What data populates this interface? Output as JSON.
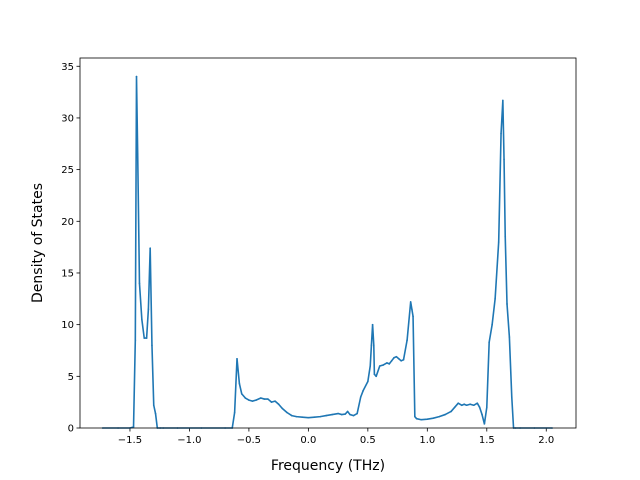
{
  "chart_data": {
    "type": "line",
    "title": "",
    "xlabel": "Frequency (THz)",
    "ylabel": "Density of States",
    "xlim": [
      -1.92,
      2.25
    ],
    "ylim": [
      0,
      35.8
    ],
    "grid": false,
    "legend": "none",
    "x_ticks": [
      {
        "value": -1.5,
        "label": "−1.5"
      },
      {
        "value": -1.0,
        "label": "−1.0"
      },
      {
        "value": -0.5,
        "label": "−0.5"
      },
      {
        "value": 0.0,
        "label": "0.0"
      },
      {
        "value": 0.5,
        "label": "0.5"
      },
      {
        "value": 1.0,
        "label": "1.0"
      },
      {
        "value": 1.5,
        "label": "1.5"
      },
      {
        "value": 2.0,
        "label": "2.0"
      }
    ],
    "y_ticks": [
      {
        "value": 0,
        "label": "0"
      },
      {
        "value": 5,
        "label": "5"
      },
      {
        "value": 10,
        "label": "10"
      },
      {
        "value": 15,
        "label": "15"
      },
      {
        "value": 20,
        "label": "20"
      },
      {
        "value": 25,
        "label": "25"
      },
      {
        "value": 30,
        "label": "30"
      },
      {
        "value": 35,
        "label": "35"
      }
    ],
    "series": [
      {
        "color": "#1f77b4",
        "x": [
          -1.73,
          -1.6,
          -1.5,
          -1.47,
          -1.455,
          -1.445,
          -1.435,
          -1.42,
          -1.4,
          -1.38,
          -1.36,
          -1.345,
          -1.33,
          -1.315,
          -1.3,
          -1.285,
          -1.27,
          -1.245,
          -1.22,
          -1.1,
          -0.9,
          -0.7,
          -0.64,
          -0.62,
          -0.6,
          -0.58,
          -0.56,
          -0.53,
          -0.5,
          -0.47,
          -0.44,
          -0.4,
          -0.37,
          -0.34,
          -0.31,
          -0.28,
          -0.25,
          -0.22,
          -0.18,
          -0.14,
          -0.1,
          -0.05,
          0.0,
          0.05,
          0.1,
          0.15,
          0.2,
          0.25,
          0.28,
          0.31,
          0.33,
          0.35,
          0.38,
          0.41,
          0.44,
          0.46,
          0.5,
          0.52,
          0.53,
          0.54,
          0.55,
          0.555,
          0.57,
          0.6,
          0.63,
          0.66,
          0.68,
          0.7,
          0.72,
          0.74,
          0.76,
          0.78,
          0.8,
          0.83,
          0.86,
          0.87,
          0.88,
          0.895,
          0.91,
          0.95,
          1.0,
          1.05,
          1.1,
          1.15,
          1.2,
          1.23,
          1.26,
          1.29,
          1.31,
          1.33,
          1.36,
          1.39,
          1.42,
          1.44,
          1.46,
          1.48,
          1.5,
          1.52,
          1.545,
          1.57,
          1.6,
          1.62,
          1.635,
          1.645,
          1.655,
          1.67,
          1.69,
          1.71,
          1.725,
          1.74,
          1.78,
          1.9,
          2.05
        ],
        "y": [
          0,
          0,
          0,
          0.1,
          8.5,
          34.0,
          26.5,
          14.0,
          10.5,
          8.7,
          8.7,
          11.5,
          17.4,
          8.0,
          2.2,
          1.4,
          0.0,
          0.0,
          0.0,
          0.0,
          0.0,
          0.0,
          0.0,
          1.5,
          6.7,
          4.3,
          3.3,
          2.9,
          2.7,
          2.6,
          2.7,
          2.9,
          2.8,
          2.8,
          2.5,
          2.6,
          2.3,
          1.9,
          1.5,
          1.2,
          1.1,
          1.05,
          1.0,
          1.05,
          1.1,
          1.2,
          1.3,
          1.4,
          1.3,
          1.35,
          1.6,
          1.3,
          1.2,
          1.4,
          3.0,
          3.6,
          4.5,
          6.0,
          8.0,
          10.0,
          8.0,
          5.2,
          5.0,
          6.0,
          6.1,
          6.3,
          6.2,
          6.5,
          6.8,
          6.9,
          6.7,
          6.5,
          6.6,
          8.5,
          12.2,
          11.5,
          10.8,
          1.1,
          0.9,
          0.8,
          0.85,
          0.95,
          1.1,
          1.3,
          1.6,
          2.0,
          2.4,
          2.2,
          2.3,
          2.2,
          2.3,
          2.2,
          2.4,
          2.0,
          1.3,
          0.4,
          2.0,
          8.3,
          10.0,
          12.5,
          18.0,
          28.5,
          31.7,
          26.0,
          18.5,
          12.0,
          8.8,
          3.0,
          0.0,
          0.0,
          0.0,
          0.0,
          0.0
        ]
      }
    ]
  }
}
